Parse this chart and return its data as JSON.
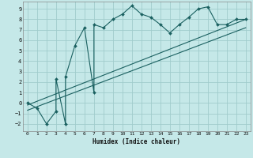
{
  "title": "",
  "xlabel": "Humidex (Indice chaleur)",
  "background_color": "#c5e8e8",
  "grid_color": "#a0cccc",
  "line_color": "#1a6060",
  "xlim": [
    -0.5,
    23.5
  ],
  "ylim": [
    -2.7,
    9.7
  ],
  "xticks": [
    0,
    1,
    2,
    3,
    4,
    5,
    6,
    7,
    8,
    9,
    10,
    11,
    12,
    13,
    14,
    15,
    16,
    17,
    18,
    19,
    20,
    21,
    22,
    23
  ],
  "yticks": [
    -2,
    -1,
    0,
    1,
    2,
    3,
    4,
    5,
    6,
    7,
    8,
    9
  ],
  "series1_x": [
    0,
    1,
    2,
    3,
    3,
    4,
    4,
    5,
    6,
    7,
    7,
    8,
    9,
    10,
    11,
    12,
    13,
    14,
    15,
    16,
    17,
    18,
    19,
    20,
    21,
    22,
    23
  ],
  "series1_y": [
    0,
    -0.5,
    -2,
    -0.8,
    2.3,
    -2,
    2.5,
    5.5,
    7.2,
    1.0,
    7.5,
    7.2,
    8.0,
    8.5,
    9.3,
    8.5,
    8.2,
    7.5,
    6.7,
    7.5,
    8.2,
    9.0,
    9.2,
    7.5,
    7.5,
    8.0,
    8.0
  ],
  "line1_x": [
    0,
    23
  ],
  "line1_y": [
    -0.2,
    8.0
  ],
  "line2_x": [
    0,
    23
  ],
  "line2_y": [
    -0.7,
    7.2
  ]
}
